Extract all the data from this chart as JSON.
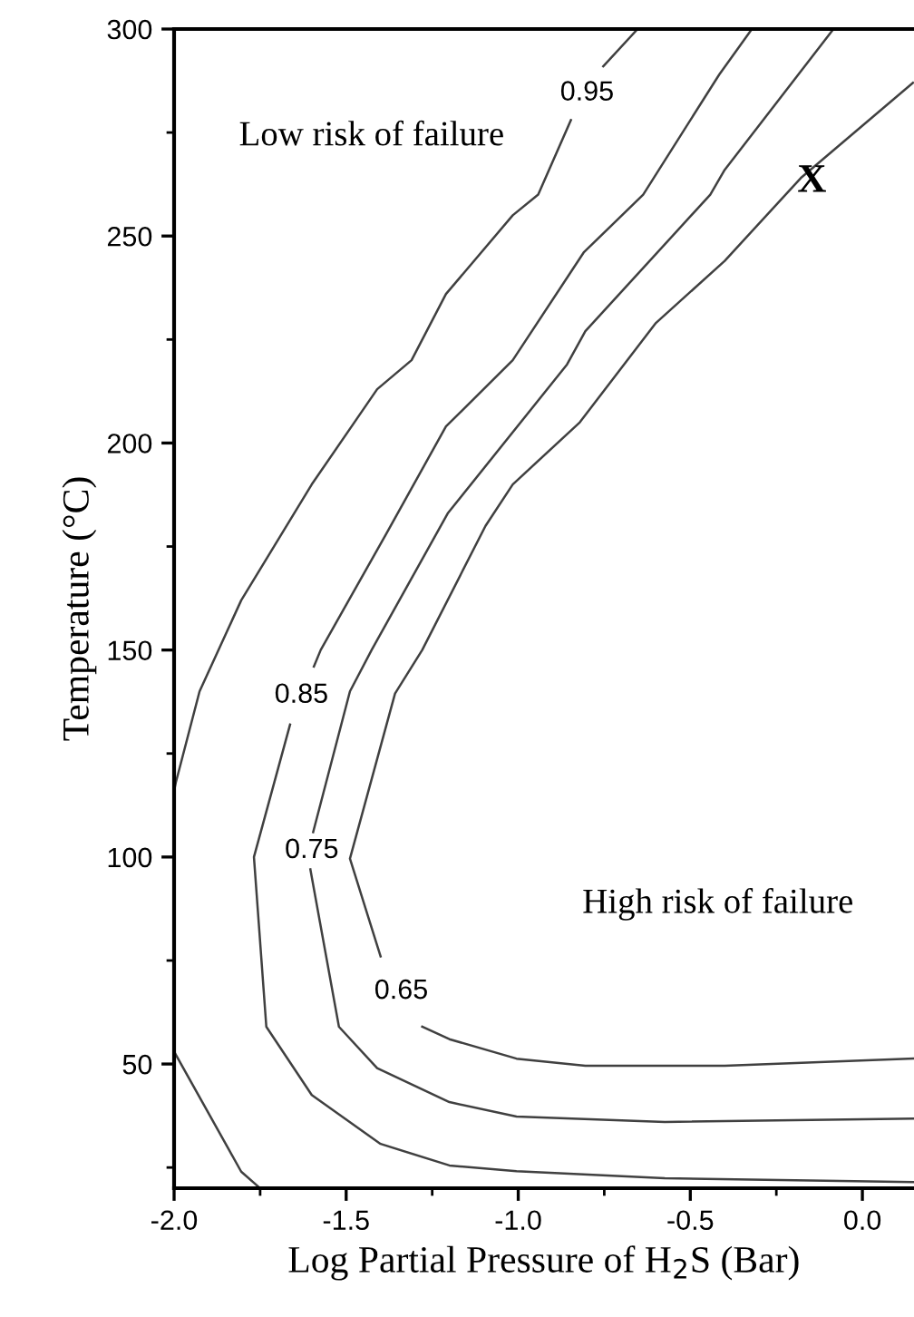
{
  "chart_data": {
    "type": "line",
    "xlabel": "Log Partial Pressure of H$_{2}$S (Bar)",
    "ylabel": "Temperature (°C)",
    "xlim": [
      -2.0,
      0.15
    ],
    "ylim": [
      20,
      300
    ],
    "xticks": [
      {
        "value": -2.0,
        "label": "-2.0"
      },
      {
        "value": -1.75,
        "label": null
      },
      {
        "value": -1.5,
        "label": "-1.5"
      },
      {
        "value": -1.25,
        "label": null
      },
      {
        "value": -1.0,
        "label": "-1.0"
      },
      {
        "value": -0.75,
        "label": null
      },
      {
        "value": -0.5,
        "label": "-0.5"
      },
      {
        "value": -0.25,
        "label": null
      },
      {
        "value": 0.0,
        "label": "0.0"
      }
    ],
    "yticks": [
      {
        "value": 25,
        "label": null
      },
      50,
      {
        "value": 75,
        "label": null
      },
      100,
      {
        "value": 125,
        "label": null
      },
      150,
      {
        "value": 175,
        "label": null
      },
      200,
      {
        "value": 225,
        "label": null
      },
      250,
      {
        "value": 275,
        "label": null
      },
      300
    ],
    "grid": false,
    "series": [
      {
        "name": "0.95",
        "color": "#404040",
        "x": [
          -0.653,
          -0.753,
          -0.8,
          -0.847,
          -0.942,
          -1.016,
          -1.21,
          -1.31,
          -1.41,
          -1.6,
          -1.805,
          -1.926,
          -1.995,
          -2.0
        ],
        "values": [
          300,
          291,
          null,
          278,
          260,
          255,
          236,
          220,
          213,
          190,
          162,
          140,
          118,
          116
        ]
      },
      {
        "color": "#404040",
        "x": [
          -2.0,
          -1.805,
          -1.75
        ],
        "values": [
          53,
          24,
          20
        ]
      },
      {
        "name": "0.85",
        "color": "#404040",
        "x": [
          -0.321,
          -0.416,
          -0.637,
          -0.81,
          -1.016,
          -1.21,
          -1.384,
          -1.574,
          -1.594,
          -1.63,
          -1.663,
          -1.768,
          -1.732,
          -1.6,
          -1.4,
          -1.2,
          -1.005,
          -0.574,
          0.147
        ],
        "values": [
          300,
          289,
          260,
          246,
          220,
          204,
          178,
          150,
          146,
          null,
          132,
          100,
          59,
          42.5,
          30.7,
          25.5,
          24.1,
          22.4,
          21.5
        ]
      },
      {
        "name": "0.75",
        "color": "#404040",
        "x": [
          -0.084,
          -0.4,
          -0.442,
          -0.805,
          -0.858,
          -1.205,
          -1.426,
          -1.489,
          -1.596,
          -1.6,
          -1.604,
          -1.521,
          -1.41,
          -1.2,
          -1.005,
          -0.574,
          0.147
        ],
        "values": [
          300,
          266,
          260,
          227,
          219,
          183,
          150,
          140,
          106,
          null,
          97,
          59,
          49,
          40.8,
          37.3,
          36,
          36.8
        ]
      },
      {
        "name": "0.65",
        "color": "#404040",
        "x": [
          0.147,
          -0.179,
          -0.4,
          -0.6,
          -0.821,
          -1.016,
          -1.095,
          -1.279,
          -1.358,
          -1.489,
          -1.4,
          -1.34,
          -1.279,
          -1.2,
          -1.005,
          -0.805,
          -0.4,
          0.147
        ],
        "values": [
          287,
          264,
          244,
          229,
          205,
          190,
          180,
          150,
          139.5,
          99.6,
          76,
          null,
          59,
          56,
          51.3,
          49.6,
          49.6,
          51.3
        ]
      }
    ],
    "annotations": [
      "Low risk of failure",
      "High risk of failure",
      "X"
    ]
  }
}
